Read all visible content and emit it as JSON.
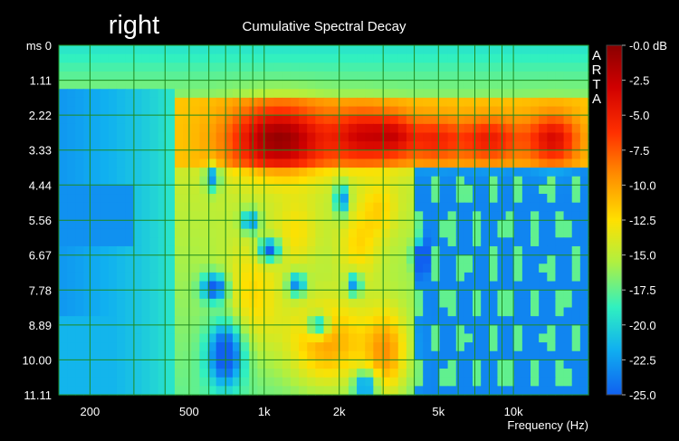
{
  "chart_data": {
    "type": "heatmap",
    "channel_label": "right",
    "title": "Cumulative Spectral Decay",
    "xlabel": "Frequency (Hz)",
    "ylabel_unit": "ms",
    "watermark": "ARTA",
    "x_scale": "log",
    "x_range_hz": [
      150,
      20000
    ],
    "y_range_ms": [
      0,
      11.11
    ],
    "x_tick_values": [
      200,
      500,
      1000,
      2000,
      5000,
      10000
    ],
    "x_tick_labels": [
      "200",
      "500",
      "1k",
      "2k",
      "5k",
      "10k"
    ],
    "y_tick_values": [
      0,
      1.11,
      2.22,
      3.33,
      4.44,
      5.56,
      6.67,
      7.78,
      8.89,
      10.0,
      11.11
    ],
    "y_tick_labels": [
      "ms 0",
      "1.11",
      "2.22",
      "3.33",
      "4.44",
      "5.56",
      "6.67",
      "7.78",
      "8.89",
      "10.00",
      "11.11"
    ],
    "colorbar_range_db": [
      -25,
      0
    ],
    "colorbar_tick_values": [
      0,
      -2.5,
      -5,
      -7.5,
      -10,
      -12.5,
      -15,
      -17.5,
      -20,
      -22.5,
      -25
    ],
    "colorbar_tick_labels": [
      "-0.0 dB",
      "-2.5",
      "-5.0",
      "-7.5",
      "-10.0",
      "-12.5",
      "-15.0",
      "-17.5",
      "-20.0",
      "-22.5",
      "-25.0"
    ],
    "grid": true,
    "grid_color": "#1f8a1f",
    "background_level_db": -23
  }
}
